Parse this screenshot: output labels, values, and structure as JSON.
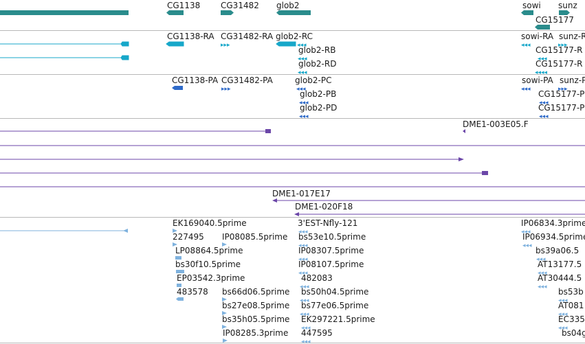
{
  "colors": {
    "gene": "#2a8c8c",
    "transcript": "#17a7c9",
    "protein": "#2e6ac9",
    "clone": "#6b46a8",
    "est": "#7fb2de",
    "divider": "#b8b8b8"
  },
  "tracks": {
    "genes": {
      "labels": [
        "CG1138",
        "CG31482",
        "glob2",
        "sowi",
        "sunz",
        "CG15177"
      ]
    },
    "transcripts": {
      "labels": [
        "CG1138-RA",
        "CG31482-RA",
        "glob2-RC",
        "glob2-RB",
        "glob2-RD",
        "sowi-RA",
        "sunz-R",
        "CG15177-R",
        "CG15177-R"
      ]
    },
    "proteins": {
      "labels": [
        "CG1138-PA",
        "CG31482-PA",
        "glob2-PC",
        "glob2-PB",
        "glob2-PD",
        "sowi-PA",
        "sunz-P",
        "CG15177-P",
        "CG15177-P"
      ]
    },
    "clones": {
      "labels": [
        "DME1-003E05.F",
        "DME1-017E17",
        "DME1-020F18"
      ]
    },
    "ests": {
      "labels": [
        "EK169040.5prime",
        "227495",
        "IP08085.5prime",
        "LP08864.5prime",
        "bs30f10.5prime",
        "EP03542.3prime",
        "483578",
        "bs66d06.5prime",
        "bs27e08.5prime",
        "bs35h05.5prime",
        "IP08285.3prime",
        "3'EST-Nfly-121",
        "bs53e10.5prime",
        "IP08307.5prime",
        "IP08107.5prime",
        "482083",
        "bs50h04.5prime",
        "bs77e06.5prime",
        "EK297221.5prime",
        "447595",
        "IP06834.3prime",
        "IP06934.5prime",
        "bs39a06.5",
        "AT13177.5",
        "AT30444.5",
        "bs53b",
        "AT081",
        "EC335",
        "bs04g"
      ]
    }
  }
}
